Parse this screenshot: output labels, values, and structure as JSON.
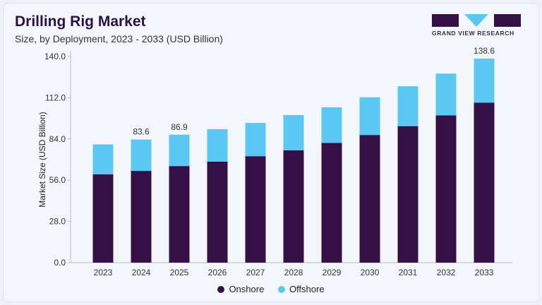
{
  "header": {
    "title": "Drilling Rig Market",
    "subtitle": "Size, by Deployment, 2023 - 2033 (USD Billion)",
    "logo_text": "GRAND VIEW RESEARCH"
  },
  "colors": {
    "onshore": "#341046",
    "offshore": "#5bc8f3",
    "logo": "#341046",
    "logo_accent": "#5bc8f3"
  },
  "chart_data": {
    "type": "bar",
    "stacked": true,
    "title": "Drilling Rig Market",
    "subtitle": "Size, by Deployment, 2023 - 2033 (USD Billion)",
    "xlabel": "",
    "ylabel": "Market Size (USD Billion)",
    "ylim": [
      0,
      140
    ],
    "yticks": [
      "0.0",
      "28.0",
      "56.0",
      "84.0",
      "112.0",
      "140.0"
    ],
    "grid": false,
    "legend_position": "bottom",
    "categories": [
      "2023",
      "2024",
      "2025",
      "2026",
      "2027",
      "2028",
      "2029",
      "2030",
      "2031",
      "2032",
      "2033"
    ],
    "series": [
      {
        "name": "Onshore",
        "values": [
          60.0,
          62.3,
          65.6,
          68.6,
          72.3,
          76.3,
          81.3,
          86.7,
          92.7,
          100.0,
          108.6
        ]
      },
      {
        "name": "Offshore",
        "values": [
          20.3,
          21.3,
          21.3,
          22.0,
          22.6,
          23.9,
          24.2,
          25.6,
          27.1,
          28.4,
          30.0
        ]
      }
    ],
    "data_labels": [
      {
        "category": "2024",
        "text": "83.6"
      },
      {
        "category": "2025",
        "text": "86.9"
      },
      {
        "category": "2033",
        "text": "138.6"
      }
    ]
  }
}
